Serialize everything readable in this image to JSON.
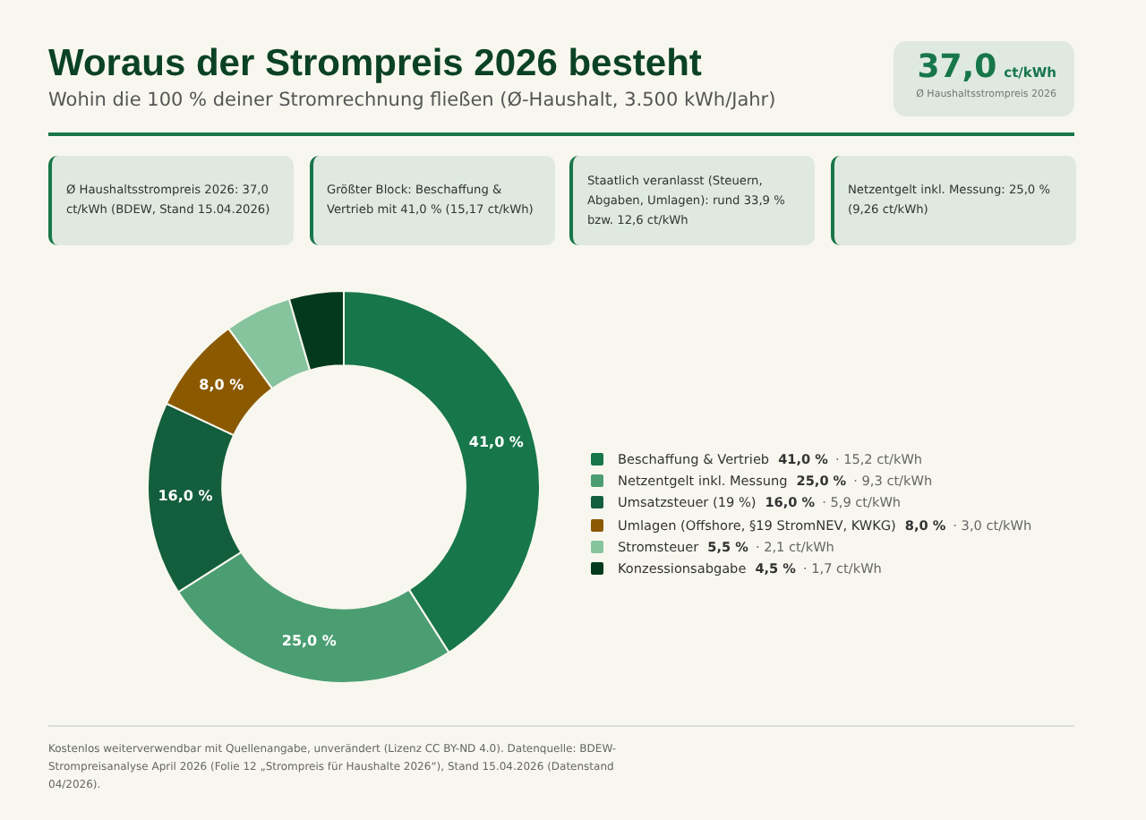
{
  "chart_data": {
    "type": "donut",
    "title": "Woraus der Strompreis 2026 besteht",
    "subtitle": "Wohin die 100 % deiner Stromrechnung fließen (Ø-Haushalt, 3.500 kWh/Jahr)",
    "categories": [
      "Beschaffung & Vertrieb",
      "Netzentgelt inkl. Messung",
      "Umsatzsteuer (19 %)",
      "Umlagen (Offshore, §19 StromNEV, KWKG)",
      "Stromsteuer",
      "Konzessionsabgabe"
    ],
    "values": [
      41.0,
      25.0,
      16.0,
      8.0,
      5.5,
      4.5
    ],
    "colors": [
      "#17764a",
      "#4a9e72",
      "#135e3c",
      "#8b5a00",
      "#86c49d",
      "#033a1e"
    ],
    "value_labels": [
      "41,0 %",
      "25,0 %",
      "16,0 %",
      "8,0 %",
      null,
      null
    ],
    "legend": "right",
    "annotations": [
      "37,0 ct/kWh",
      "Ø Haushaltsstrompreis 2026",
      "Ø Haushaltsstrompreis 2026: 37,0 ct/kWh (BDEW, Stand 15.04.2026)",
      "Größter Block: Beschaffung & Vertrieb mit 41,0 % (15,17 ct/kWh)",
      "Staatlich veranlasst (Steuern, Abgaben, Umlagen): rund 33,9 % bzw. 12,6 ct/kWh",
      "Netzentgelt inkl. Messung: 25,0 % (9,26 ct/kWh)",
      "Kostenlos weiterverwendbar mit Quellenangabe, unverändert (Lizenz CC BY-ND 4.0). Datenquelle: BDEW-Strompreisanalyse April 2026 (Folie 12 „Strompreis für Haushalte 2026“), Stand 15.04.2026 (Datenstand 04/2026).",
      {
        "text": "41,0 % · 15,2 ct/kWh",
        "x": "Beschaffung & Vertrieb"
      },
      {
        "text": "25,0 % · 9,3 ct/kWh",
        "x": "Netzentgelt inkl. Messung"
      },
      {
        "text": "16,0 % · 5,9 ct/kWh",
        "x": "Umsatzsteuer (19 %)"
      },
      {
        "text": "8,0 % · 3,0 ct/kWh",
        "x": "Umlagen (Offshore, §19 StromNEV, KWKG)"
      },
      {
        "text": "5,5 % · 2,1 ct/kWh",
        "x": "Stromsteuer"
      },
      {
        "text": "4,5 % · 1,7 ct/kWh",
        "x": "Konzessionsabgabe"
      }
    ]
  }
}
